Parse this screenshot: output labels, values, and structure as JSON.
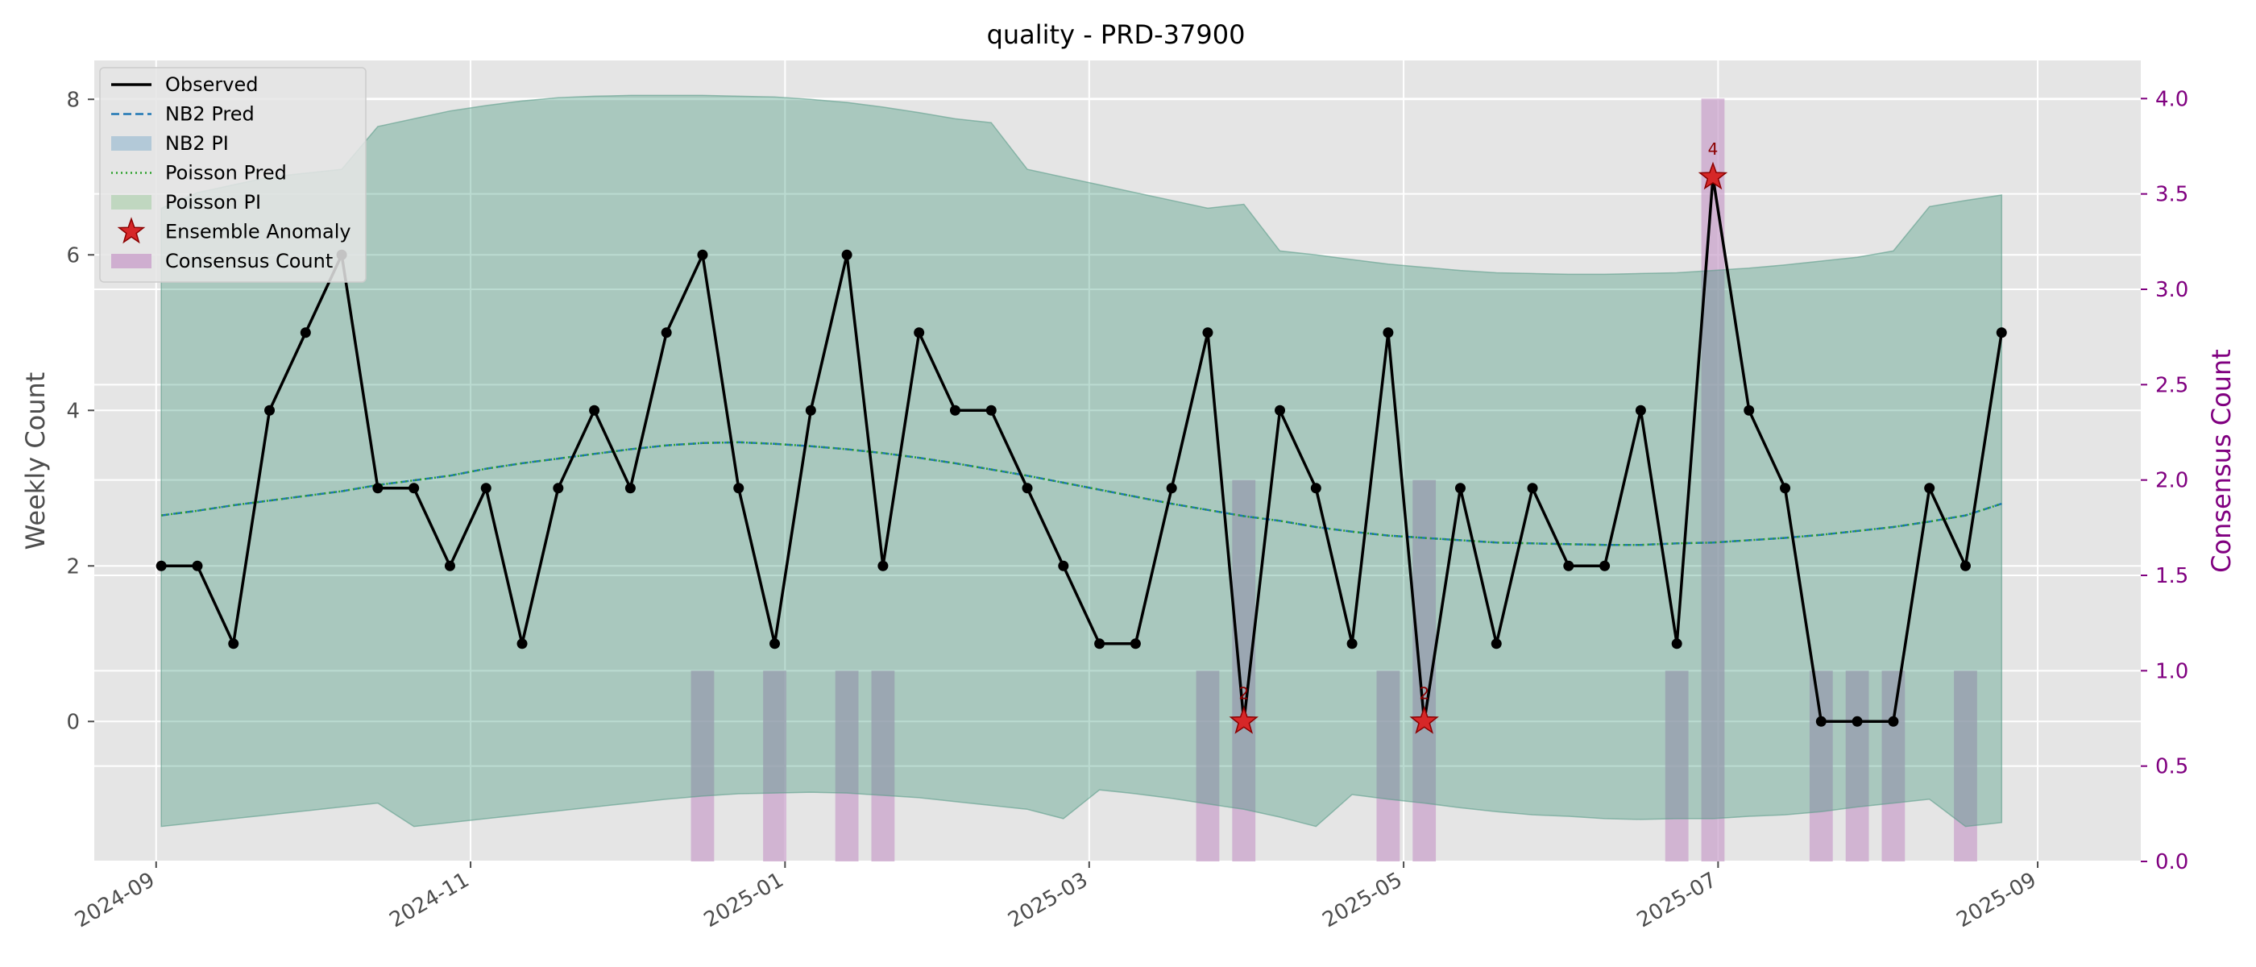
{
  "chart_data": {
    "type": "line",
    "title": "quality - PRD-37900",
    "xlabel": "",
    "ylabel": "Weekly Count",
    "y2label": "Consensus Count",
    "ylim": [
      -1.8,
      8.5
    ],
    "y2lim": [
      0,
      4.2
    ],
    "yticks": [
      0,
      2,
      4,
      6,
      8
    ],
    "y2ticks": [
      0.0,
      0.5,
      1.0,
      1.5,
      2.0,
      2.5,
      3.0,
      3.5,
      4.0
    ],
    "y2tick_labels": [
      "0.0",
      "0.5",
      "1.0",
      "1.5",
      "2.0",
      "2.5",
      "3.0",
      "3.5",
      "4.0"
    ],
    "xlim": [
      "2024-08-20",
      "2025-09-21"
    ],
    "xticks": [
      "2024-09-01",
      "2024-11-01",
      "2025-01-01",
      "2025-03-01",
      "2025-05-01",
      "2025-07-01",
      "2025-09-01"
    ],
    "xtick_labels": [
      "2024-09",
      "2024-11",
      "2025-01",
      "2025-03",
      "2025-05",
      "2025-07",
      "2025-09"
    ],
    "grid": true,
    "legend_position": "top-left",
    "legend": [
      "Observed",
      "NB2 Pred",
      "NB2 PI",
      "Poisson Pred",
      "Poisson PI",
      "Ensemble Anomaly",
      "Consensus Count"
    ],
    "x": [
      "2024-09-02",
      "2024-09-09",
      "2024-09-16",
      "2024-09-23",
      "2024-09-30",
      "2024-10-07",
      "2024-10-14",
      "2024-10-21",
      "2024-10-28",
      "2024-11-04",
      "2024-11-11",
      "2024-11-18",
      "2024-11-25",
      "2024-12-02",
      "2024-12-09",
      "2024-12-16",
      "2024-12-23",
      "2024-12-30",
      "2025-01-06",
      "2025-01-13",
      "2025-01-20",
      "2025-01-27",
      "2025-02-03",
      "2025-02-10",
      "2025-02-17",
      "2025-02-24",
      "2025-03-03",
      "2025-03-10",
      "2025-03-17",
      "2025-03-24",
      "2025-03-31",
      "2025-04-07",
      "2025-04-14",
      "2025-04-21",
      "2025-04-28",
      "2025-05-05",
      "2025-05-12",
      "2025-05-19",
      "2025-05-26",
      "2025-06-02",
      "2025-06-09",
      "2025-06-16",
      "2025-06-23",
      "2025-06-30",
      "2025-07-07",
      "2025-07-14",
      "2025-07-21",
      "2025-07-28",
      "2025-08-04",
      "2025-08-11",
      "2025-08-18",
      "2025-08-25"
    ],
    "series": [
      {
        "name": "Observed",
        "color": "#000000",
        "values": [
          2,
          2,
          1,
          4,
          5,
          6,
          3,
          3,
          2,
          3,
          1,
          3,
          4,
          3,
          5,
          6,
          3,
          1,
          4,
          6,
          2,
          5,
          4,
          4,
          3,
          2,
          1,
          1,
          3,
          5,
          0,
          4,
          3,
          1,
          5,
          0,
          3,
          1,
          3,
          2,
          2,
          4,
          1,
          7,
          4,
          3,
          0,
          0,
          0,
          3,
          2,
          5
        ]
      },
      {
        "name": "NB2 Pred",
        "color": "#1f77b4",
        "values": [
          2.65,
          2.71,
          2.78,
          2.84,
          2.9,
          2.96,
          3.04,
          3.1,
          3.16,
          3.25,
          3.32,
          3.38,
          3.44,
          3.5,
          3.55,
          3.58,
          3.59,
          3.57,
          3.54,
          3.5,
          3.45,
          3.39,
          3.32,
          3.24,
          3.16,
          3.07,
          2.98,
          2.89,
          2.8,
          2.72,
          2.64,
          2.58,
          2.5,
          2.44,
          2.39,
          2.36,
          2.33,
          2.3,
          2.29,
          2.28,
          2.27,
          2.27,
          2.29,
          2.3,
          2.33,
          2.36,
          2.4,
          2.45,
          2.5,
          2.57,
          2.65,
          2.8
        ]
      },
      {
        "name": "Poisson Pred",
        "color": "#2ca02c",
        "values": [
          2.65,
          2.71,
          2.78,
          2.84,
          2.9,
          2.96,
          3.04,
          3.1,
          3.16,
          3.25,
          3.32,
          3.38,
          3.44,
          3.5,
          3.55,
          3.58,
          3.59,
          3.57,
          3.54,
          3.5,
          3.45,
          3.39,
          3.32,
          3.24,
          3.16,
          3.07,
          2.98,
          2.89,
          2.8,
          2.72,
          2.64,
          2.58,
          2.5,
          2.44,
          2.39,
          2.36,
          2.33,
          2.3,
          2.29,
          2.28,
          2.27,
          2.27,
          2.29,
          2.3,
          2.33,
          2.36,
          2.4,
          2.45,
          2.5,
          2.57,
          2.65,
          2.8
        ]
      }
    ],
    "nb2_pi": {
      "lower": [
        -1.35,
        -1.3,
        -1.25,
        -1.2,
        -1.15,
        -1.1,
        -1.05,
        -1.35,
        -1.3,
        -1.25,
        -1.2,
        -1.15,
        -1.1,
        -1.05,
        -1.0,
        -0.96,
        -0.93,
        -0.92,
        -0.91,
        -0.92,
        -0.95,
        -0.98,
        -1.03,
        -1.08,
        -1.13,
        -1.25,
        -0.88,
        -0.93,
        -0.99,
        -1.06,
        -1.13,
        -1.23,
        -1.35,
        -0.94,
        -1.0,
        -1.05,
        -1.11,
        -1.16,
        -1.2,
        -1.22,
        -1.25,
        -1.26,
        -1.25,
        -1.25,
        -1.22,
        -1.2,
        -1.16,
        -1.1,
        -1.05,
        -1.0,
        -1.35,
        -1.3
      ],
      "upper": [
        6.6,
        6.8,
        6.9,
        7.0,
        7.05,
        7.1,
        7.65,
        7.75,
        7.85,
        7.92,
        7.98,
        8.02,
        8.04,
        8.05,
        8.05,
        8.05,
        8.04,
        8.03,
        8.0,
        7.96,
        7.9,
        7.83,
        7.75,
        7.7,
        7.1,
        7.0,
        6.9,
        6.8,
        6.7,
        6.6,
        6.65,
        6.05,
        6.0,
        5.94,
        5.88,
        5.84,
        5.8,
        5.77,
        5.76,
        5.75,
        5.75,
        5.76,
        5.77,
        5.8,
        5.83,
        5.87,
        5.92,
        5.97,
        6.05,
        6.62,
        6.7,
        6.77
      ]
    },
    "anomalies": [
      {
        "x": "2025-03-31",
        "y": 0,
        "label": "2"
      },
      {
        "x": "2025-05-05",
        "y": 0,
        "label": "2"
      },
      {
        "x": "2025-06-30",
        "y": 7,
        "label": "4"
      }
    ],
    "consensus": [
      {
        "x": "2024-12-16",
        "value": 1
      },
      {
        "x": "2024-12-30",
        "value": 1
      },
      {
        "x": "2025-01-13",
        "value": 1
      },
      {
        "x": "2025-01-20",
        "value": 1
      },
      {
        "x": "2025-03-24",
        "value": 1
      },
      {
        "x": "2025-03-31",
        "value": 2
      },
      {
        "x": "2025-04-28",
        "value": 1
      },
      {
        "x": "2025-05-05",
        "value": 2
      },
      {
        "x": "2025-06-23",
        "value": 1
      },
      {
        "x": "2025-06-30",
        "value": 4
      },
      {
        "x": "2025-07-21",
        "value": 1
      },
      {
        "x": "2025-07-28",
        "value": 1
      },
      {
        "x": "2025-08-04",
        "value": 1
      },
      {
        "x": "2025-08-18",
        "value": 1
      }
    ],
    "colors": {
      "background": "#e5e5e5",
      "observed": "#000000",
      "nb2": "#1f77b4",
      "poisson": "#2ca02c",
      "pi_fill": "#86b5a8",
      "anomaly": "#d62728",
      "consensus": "#c9a0cb",
      "right_axis": "#800080"
    }
  }
}
